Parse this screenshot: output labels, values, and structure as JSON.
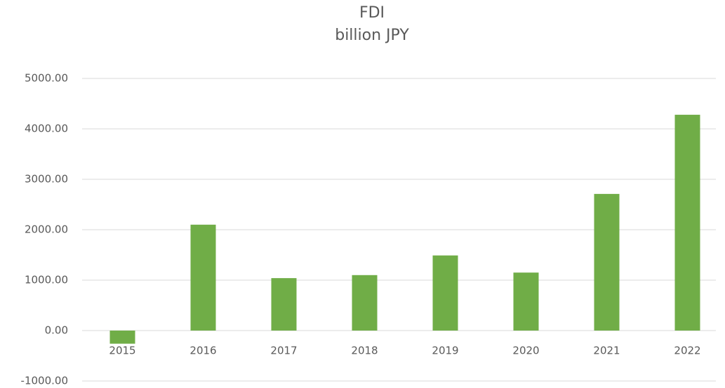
{
  "chart_data": {
    "type": "bar",
    "title": "FDI",
    "subtitle": "billion JPY",
    "categories": [
      "2015",
      "2016",
      "2017",
      "2018",
      "2019",
      "2020",
      "2021",
      "2022"
    ],
    "values": [
      -260,
      2100,
      1040,
      1100,
      1490,
      1150,
      2710,
      4280
    ],
    "color": "#70ad47",
    "ylim": [
      -1000,
      5000
    ],
    "yticks": [
      {
        "value": -1000,
        "label": "-1000.00"
      },
      {
        "value": 0,
        "label": "0.00"
      },
      {
        "value": 1000,
        "label": "1000.00"
      },
      {
        "value": 2000,
        "label": "2000.00"
      },
      {
        "value": 3000,
        "label": "3000.00"
      },
      {
        "value": 4000,
        "label": "4000.00"
      },
      {
        "value": 5000,
        "label": "5000.00"
      }
    ],
    "grid": true
  }
}
